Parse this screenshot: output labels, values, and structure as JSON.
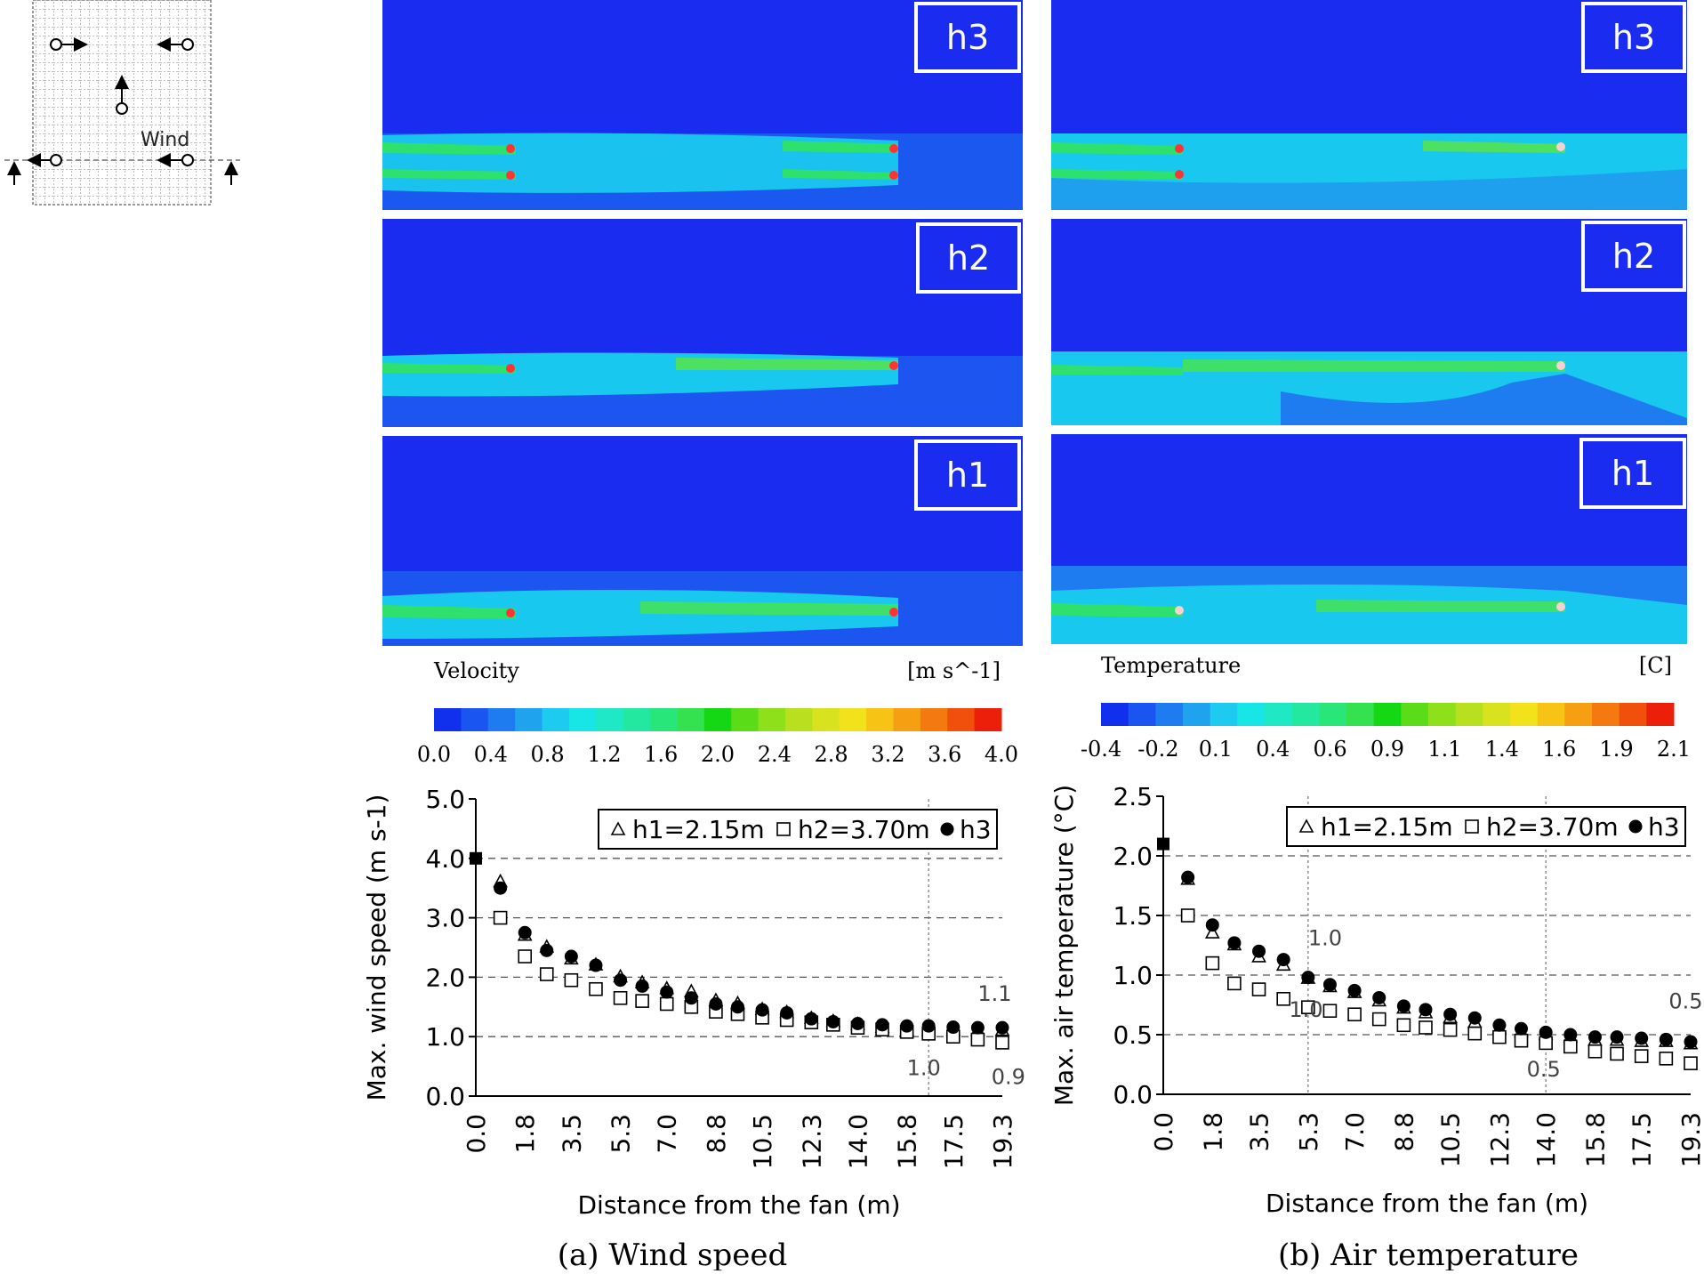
{
  "inset": {
    "wind_label": "Wind"
  },
  "contour_panels": {
    "velocity": {
      "labels": [
        "h3",
        "h2",
        "h1"
      ]
    },
    "temperature": {
      "labels": [
        "h3",
        "h2",
        "h1"
      ]
    }
  },
  "colorbars": {
    "velocity": {
      "title": "Velocity",
      "unit": "[m s^-1]",
      "ticks": [
        "0.0",
        "0.4",
        "0.8",
        "1.2",
        "1.6",
        "2.0",
        "2.4",
        "2.8",
        "3.2",
        "3.6",
        "4.0"
      ],
      "colors": [
        "#1030ee",
        "#1a55f2",
        "#1f7bf0",
        "#20a3ee",
        "#1ccbef",
        "#18e6e6",
        "#1fe8c4",
        "#22e8a0",
        "#28e67a",
        "#33e24e",
        "#14d814",
        "#5adc18",
        "#8ee01a",
        "#b8e01e",
        "#d8e21e",
        "#f2e21c",
        "#f7c416",
        "#f79f12",
        "#f47a10",
        "#f0500c",
        "#ec200a"
      ]
    },
    "temperature": {
      "title": "Temperature",
      "unit": "[C]",
      "ticks": [
        "-0.4",
        "-0.2",
        "0.1",
        "0.4",
        "0.6",
        "0.9",
        "1.1",
        "1.4",
        "1.6",
        "1.9",
        "2.1"
      ],
      "colors": [
        "#1030ee",
        "#1a55f2",
        "#1f7bf0",
        "#20a3ee",
        "#1ccbef",
        "#18e6e6",
        "#1fe8c4",
        "#22e8a0",
        "#28e67a",
        "#33e24e",
        "#14d814",
        "#5adc18",
        "#8ee01a",
        "#b8e01e",
        "#d8e21e",
        "#f2e21c",
        "#f7c416",
        "#f79f12",
        "#f47a10",
        "#f0500c",
        "#ec200a"
      ]
    }
  },
  "chart_data": [
    {
      "type": "scatter",
      "caption": "(a)  Wind speed",
      "xlabel": "Distance from the fan (m)",
      "ylabel": "Max. wind speed (m s-1)",
      "ylim": [
        0,
        5
      ],
      "yticks": [
        "0.0",
        "1.0",
        "2.0",
        "3.0",
        "4.0",
        "5.0"
      ],
      "xticks": [
        "0.0",
        "1.8",
        "3.5",
        "5.3",
        "7.0",
        "8.8",
        "10.5",
        "12.3",
        "14.0",
        "15.8",
        "17.5",
        "19.3"
      ],
      "x": [
        0.0,
        0.9,
        1.8,
        2.6,
        3.5,
        4.4,
        5.3,
        6.1,
        7.0,
        7.9,
        8.8,
        9.6,
        10.5,
        11.4,
        12.3,
        13.1,
        14.0,
        14.9,
        15.8,
        16.6,
        17.5,
        18.4,
        19.3
      ],
      "legend": {
        "h1": "h1=2.15m",
        "h2": "h2=3.70m",
        "h3": "h3"
      },
      "series": [
        {
          "name": "h1=2.15m",
          "marker": "triangle",
          "values": [
            null,
            3.6,
            2.7,
            2.5,
            2.3,
            2.2,
            2.0,
            1.9,
            1.8,
            1.75,
            1.6,
            1.55,
            1.45,
            1.4,
            1.3,
            1.25,
            1.2,
            1.15,
            1.1,
            1.1,
            1.1,
            1.1,
            1.1
          ]
        },
        {
          "name": "h2=3.70m",
          "marker": "square",
          "values": [
            null,
            3.0,
            2.35,
            2.05,
            1.95,
            1.8,
            1.65,
            1.6,
            1.55,
            1.5,
            1.42,
            1.38,
            1.32,
            1.28,
            1.24,
            1.2,
            1.15,
            1.12,
            1.08,
            1.05,
            1.0,
            0.95,
            0.9
          ]
        },
        {
          "name": "h3",
          "marker": "circle",
          "values": [
            null,
            3.5,
            2.75,
            2.45,
            2.35,
            2.2,
            1.95,
            1.85,
            1.75,
            1.65,
            1.55,
            1.5,
            1.45,
            1.4,
            1.3,
            1.25,
            1.22,
            1.2,
            1.18,
            1.18,
            1.16,
            1.15,
            1.15
          ]
        },
        {
          "name": "fan",
          "marker": "filled-square",
          "values": [
            4.0
          ]
        }
      ],
      "vlines": [
        16.6
      ],
      "annotations": [
        {
          "text": "1.1",
          "x": 18.4,
          "y": 1.6
        },
        {
          "text": "1.0",
          "x": 15.8,
          "y": 0.35
        },
        {
          "text": "0.9",
          "x": 18.9,
          "y": 0.2
        }
      ]
    },
    {
      "type": "scatter",
      "caption": "(b)  Air temperature",
      "xlabel": "Distance from the fan (m)",
      "ylabel": "Max. air temperature (°C)",
      "ylim": [
        0,
        2.5
      ],
      "yticks": [
        "0.0",
        "0.5",
        "1.0",
        "1.5",
        "2.0",
        "2.5"
      ],
      "xticks": [
        "0.0",
        "1.8",
        "3.5",
        "5.3",
        "7.0",
        "8.8",
        "10.5",
        "12.3",
        "14.0",
        "15.8",
        "17.5",
        "19.3"
      ],
      "x": [
        0.0,
        0.9,
        1.8,
        2.6,
        3.5,
        4.4,
        5.3,
        6.1,
        7.0,
        7.9,
        8.8,
        9.6,
        10.5,
        11.4,
        12.3,
        13.1,
        14.0,
        14.9,
        15.8,
        16.6,
        17.5,
        18.4,
        19.3
      ],
      "legend": {
        "h1": "h1=2.15m",
        "h2": "h2=3.70m",
        "h3": "h3"
      },
      "series": [
        {
          "name": "h1=2.15m",
          "marker": "triangle",
          "values": [
            null,
            1.8,
            1.35,
            1.25,
            1.15,
            1.08,
            0.97,
            0.9,
            0.85,
            0.78,
            0.72,
            0.68,
            0.64,
            0.6,
            0.55,
            0.52,
            0.5,
            0.48,
            0.45,
            0.45,
            0.44,
            0.44,
            0.42
          ]
        },
        {
          "name": "h2=3.70m",
          "marker": "square",
          "values": [
            null,
            1.5,
            1.1,
            0.93,
            0.88,
            0.8,
            0.73,
            0.7,
            0.67,
            0.63,
            0.58,
            0.56,
            0.54,
            0.51,
            0.48,
            0.45,
            0.43,
            0.4,
            0.36,
            0.34,
            0.32,
            0.3,
            0.26
          ]
        },
        {
          "name": "h3",
          "marker": "circle",
          "values": [
            null,
            1.82,
            1.42,
            1.27,
            1.2,
            1.13,
            0.98,
            0.92,
            0.87,
            0.81,
            0.74,
            0.71,
            0.67,
            0.64,
            0.58,
            0.55,
            0.52,
            0.5,
            0.48,
            0.48,
            0.47,
            0.46,
            0.44
          ]
        },
        {
          "name": "fan",
          "marker": "filled-square",
          "values": [
            2.1
          ]
        }
      ],
      "vlines": [
        5.3,
        14.0
      ],
      "annotations": [
        {
          "text": "1.0",
          "x": 5.3,
          "y": 1.25
        },
        {
          "text": "1.0",
          "x": 4.6,
          "y": 0.65
        },
        {
          "text": "0.5",
          "x": 18.5,
          "y": 0.72
        },
        {
          "text": "0.5",
          "x": 13.3,
          "y": 0.15
        }
      ]
    }
  ]
}
